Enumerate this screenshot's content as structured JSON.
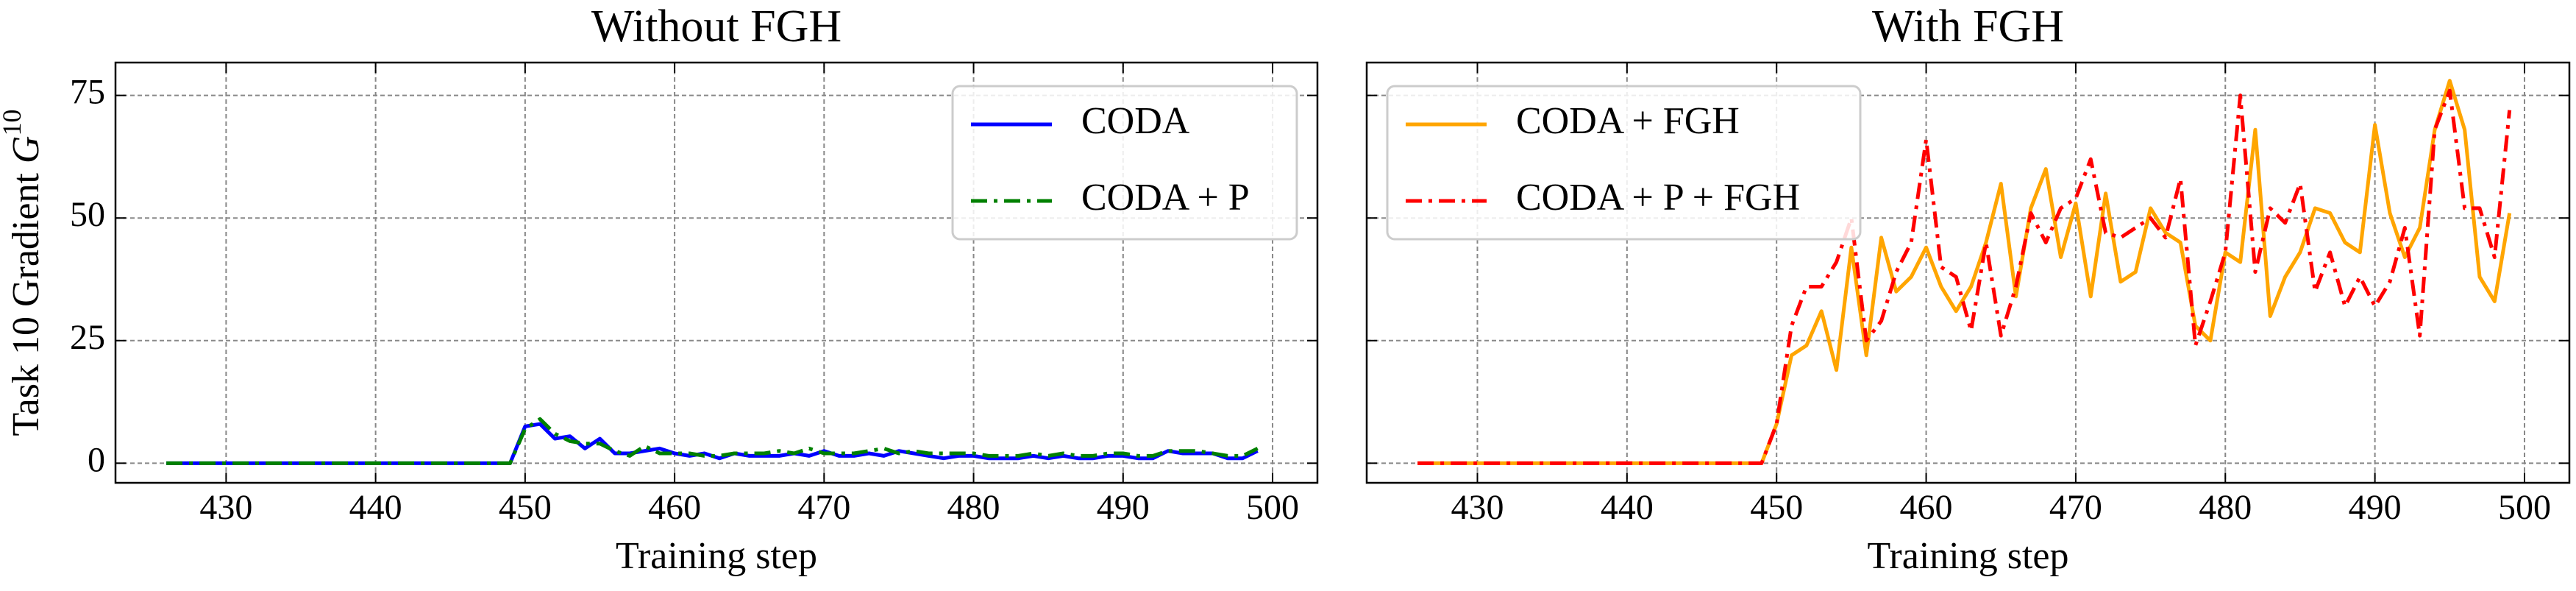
{
  "chart_data": [
    {
      "type": "line",
      "title": "Without FGH",
      "xlabel": "Training step",
      "ylabel": [
        "Task 10 Gradient ",
        "G",
        "10"
      ],
      "xlim": [
        422.6,
        503
      ],
      "xticks": [
        430,
        440,
        450,
        460,
        470,
        480,
        490,
        500
      ],
      "ylim": [
        -4,
        81.7
      ],
      "yticks": [
        0,
        25,
        50,
        75
      ],
      "grid": true,
      "legend": "upper right",
      "x": [
        426,
        427,
        428,
        429,
        430,
        431,
        432,
        433,
        434,
        435,
        436,
        437,
        438,
        439,
        440,
        441,
        442,
        443,
        444,
        445,
        446,
        447,
        448,
        449,
        450,
        451,
        452,
        453,
        454,
        455,
        456,
        457,
        458,
        459,
        460,
        461,
        462,
        463,
        464,
        465,
        466,
        467,
        468,
        469,
        470,
        471,
        472,
        473,
        474,
        475,
        476,
        477,
        478,
        479,
        480,
        481,
        482,
        483,
        484,
        485,
        486,
        487,
        488,
        489,
        490,
        491,
        492,
        493,
        494,
        495,
        496,
        497,
        498,
        499
      ],
      "series": [
        {
          "name": "CODA",
          "color": "#0000ff",
          "linestyle": "solid",
          "values": [
            0,
            0,
            0,
            0,
            0,
            0,
            0,
            0,
            0,
            0,
            0,
            0,
            0,
            0,
            0,
            0,
            0,
            0,
            0,
            0,
            0,
            0,
            0,
            0,
            7.5,
            8,
            5,
            5.5,
            3,
            5,
            2,
            2,
            2.5,
            3,
            2,
            1.5,
            2,
            1,
            2,
            1.5,
            1.5,
            1.5,
            2,
            1.5,
            2.5,
            1.5,
            1.5,
            2,
            1.5,
            2.5,
            2,
            1.5,
            1,
            1.5,
            1.5,
            1,
            1,
            1,
            1.5,
            1,
            1.5,
            1,
            1,
            1.5,
            1.5,
            1,
            1,
            2.5,
            2,
            2,
            2,
            1,
            1,
            2.5
          ]
        },
        {
          "name": "CODA + P",
          "color": "#008000",
          "linestyle": "dashdot",
          "values": [
            0,
            0,
            0,
            0,
            0,
            0,
            0,
            0,
            0,
            0,
            0,
            0,
            0,
            0,
            0,
            0,
            0,
            0,
            0,
            0,
            0,
            0,
            0,
            0,
            7,
            9,
            6,
            4.5,
            4,
            4,
            2.5,
            1.5,
            3.5,
            2,
            2,
            2,
            1.5,
            1.5,
            2,
            2,
            2,
            2.5,
            2,
            3,
            2,
            2,
            2,
            2.5,
            3,
            2,
            2.5,
            2,
            2,
            2,
            2,
            1.5,
            1.5,
            1.5,
            2,
            1.5,
            2,
            1.5,
            1.5,
            2,
            2,
            1.5,
            1.5,
            2.5,
            2.5,
            2.5,
            2,
            1.5,
            1.5,
            3
          ]
        }
      ]
    },
    {
      "type": "line",
      "title": "With FGH",
      "xlabel": "Training step",
      "sharey": true,
      "xlim": [
        422.6,
        503
      ],
      "xticks": [
        430,
        440,
        450,
        460,
        470,
        480,
        490,
        500
      ],
      "ylim": [
        -4,
        81.7
      ],
      "yticks": [
        0,
        25,
        50,
        75
      ],
      "grid": true,
      "legend": "upper left",
      "x": [
        426,
        427,
        428,
        429,
        430,
        431,
        432,
        433,
        434,
        435,
        436,
        437,
        438,
        439,
        440,
        441,
        442,
        443,
        444,
        445,
        446,
        447,
        448,
        449,
        450,
        451,
        452,
        453,
        454,
        455,
        456,
        457,
        458,
        459,
        460,
        461,
        462,
        463,
        464,
        465,
        466,
        467,
        468,
        469,
        470,
        471,
        472,
        473,
        474,
        475,
        476,
        477,
        478,
        479,
        480,
        481,
        482,
        483,
        484,
        485,
        486,
        487,
        488,
        489,
        490,
        491,
        492,
        493,
        494,
        495,
        496,
        497,
        498,
        499
      ],
      "series": [
        {
          "name": "CODA + FGH",
          "color": "#ffa500",
          "linestyle": "solid",
          "values": [
            0,
            0,
            0,
            0,
            0,
            0,
            0,
            0,
            0,
            0,
            0,
            0,
            0,
            0,
            0,
            0,
            0,
            0,
            0,
            0,
            0,
            0,
            0,
            0,
            8,
            22,
            24,
            31,
            19,
            44,
            22,
            46,
            35,
            38,
            44,
            36,
            31,
            36,
            45,
            57,
            34,
            52,
            60,
            42,
            53,
            34,
            55,
            37,
            39,
            52,
            47,
            45,
            28,
            25,
            43,
            41,
            68,
            30,
            38,
            43,
            52,
            51,
            45,
            43,
            69,
            51,
            42,
            48,
            68,
            78,
            68,
            38,
            33,
            51
          ]
        },
        {
          "name": "CODA + P + FGH",
          "color": "#ff0000",
          "linestyle": "dashdot",
          "values": [
            0,
            0,
            0,
            0,
            0,
            0,
            0,
            0,
            0,
            0,
            0,
            0,
            0,
            0,
            0,
            0,
            0,
            0,
            0,
            0,
            0,
            0,
            0,
            0,
            8,
            28,
            36,
            36,
            41,
            50,
            25,
            29,
            39,
            45,
            66,
            40,
            38,
            27,
            45,
            26,
            36,
            51,
            45,
            52,
            54,
            62,
            47,
            46,
            48,
            50,
            46,
            58,
            24,
            33,
            43,
            75,
            39,
            52,
            49,
            57,
            35,
            43,
            32,
            38,
            32,
            37,
            48,
            26,
            68,
            76,
            52,
            52,
            42,
            72
          ]
        }
      ]
    }
  ]
}
